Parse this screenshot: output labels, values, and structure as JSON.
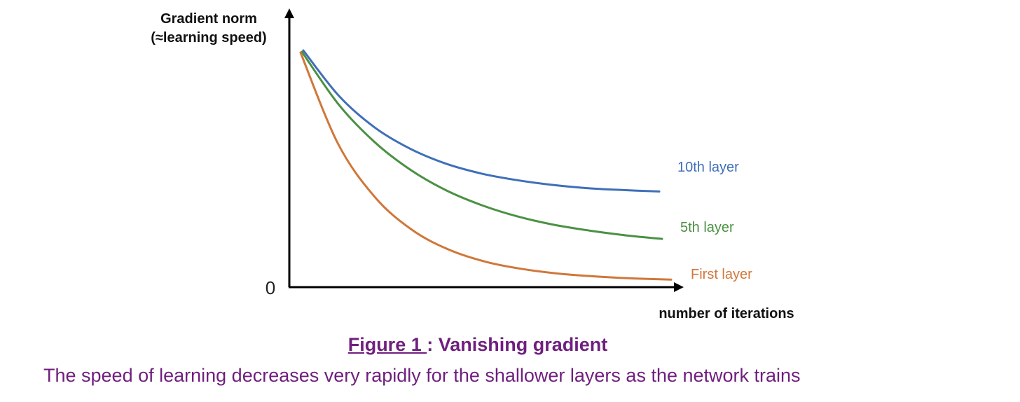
{
  "chart_data": {
    "type": "line",
    "ylabel_lines": [
      "Gradient norm",
      "(≈learning speed)"
    ],
    "xlabel": "number of iterations",
    "yticks": [
      "0"
    ],
    "xlim": [
      0,
      1
    ],
    "ylim": [
      0,
      1
    ],
    "grid": false,
    "legend": "inline-right",
    "series": [
      {
        "name": "10th layer",
        "color": "#3f6fb8",
        "x": [
          0,
          0.1,
          0.2,
          0.3,
          0.4,
          0.5,
          0.6,
          0.7,
          0.8,
          0.9,
          1.0
        ],
        "y": [
          1.0,
          0.808,
          0.675,
          0.585,
          0.522,
          0.48,
          0.452,
          0.432,
          0.418,
          0.41,
          0.404
        ]
      },
      {
        "name": "5th layer",
        "color": "#4b9143",
        "x": [
          0,
          0.1,
          0.2,
          0.3,
          0.4,
          0.5,
          0.6,
          0.7,
          0.8,
          0.9,
          1.0
        ],
        "y": [
          1.0,
          0.78,
          0.619,
          0.5,
          0.412,
          0.348,
          0.3,
          0.265,
          0.24,
          0.22,
          0.205
        ]
      },
      {
        "name": "First layer",
        "color": "#d0773a",
        "x": [
          0,
          0.1,
          0.2,
          0.3,
          0.4,
          0.5,
          0.6,
          0.7,
          0.8,
          0.9,
          1.0
        ],
        "y": [
          1.0,
          0.615,
          0.385,
          0.245,
          0.16,
          0.108,
          0.077,
          0.057,
          0.045,
          0.037,
          0.032
        ]
      }
    ]
  },
  "caption": {
    "figure_number": "Figure 1 ",
    "separator": ": ",
    "title": "Vanishing gradient",
    "text": "The speed of learning decreases very rapidly for the shallower layers as the network trains"
  }
}
